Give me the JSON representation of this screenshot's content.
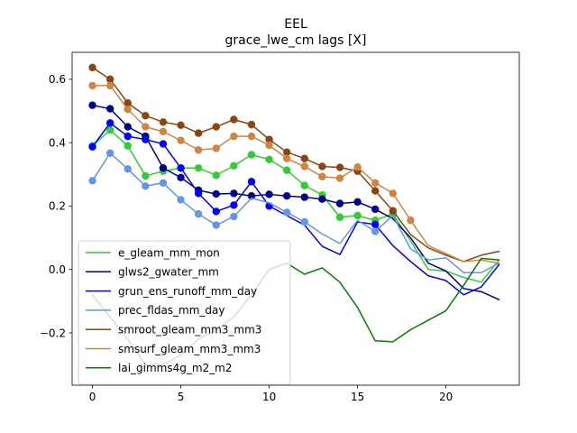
{
  "chart_data": {
    "type": "line",
    "title": "EEL",
    "subtitle": "grace_lwe_cm lags [X]",
    "xlabel": "",
    "ylabel": "",
    "xlim": [
      -1.15,
      24.15
    ],
    "ylim": [
      -0.365,
      0.685
    ],
    "xticks": [
      0,
      5,
      10,
      15,
      20
    ],
    "yticks": [
      -0.2,
      0.0,
      0.2,
      0.4,
      0.6
    ],
    "xtick_labels": [
      "0",
      "5",
      "10",
      "15",
      "20"
    ],
    "ytick_labels": [
      "−0.2",
      "0.0",
      "0.2",
      "0.4",
      "0.6"
    ],
    "legend_position": "lower-left",
    "x": [
      0,
      1,
      2,
      3,
      4,
      5,
      6,
      7,
      8,
      9,
      10,
      11,
      12,
      13,
      14,
      15,
      16,
      17,
      18,
      19,
      20,
      21,
      22,
      23
    ],
    "series": [
      {
        "name": "e_gleam_mm_mon",
        "color": "#32cd32",
        "values": [
          0.39,
          0.44,
          0.39,
          0.295,
          0.31,
          0.32,
          0.32,
          0.297,
          0.327,
          0.362,
          0.347,
          0.313,
          0.265,
          0.235,
          0.165,
          0.17,
          0.155,
          0.175,
          0.09,
          0.0,
          -0.005,
          -0.025,
          -0.04,
          0.03
        ],
        "markers": [
          true,
          true,
          true,
          true,
          true,
          true,
          true,
          true,
          true,
          true,
          true,
          true,
          true,
          true,
          true,
          true,
          true,
          true,
          false,
          false,
          false,
          false,
          false,
          false
        ]
      },
      {
        "name": "glws2_gwater_mm",
        "color": "#00008b",
        "values": [
          0.518,
          0.507,
          0.45,
          0.42,
          0.32,
          0.29,
          0.25,
          0.238,
          0.24,
          0.232,
          0.237,
          0.232,
          0.228,
          0.222,
          0.208,
          0.213,
          0.19,
          0.16,
          0.1,
          0.02,
          -0.005,
          -0.06,
          -0.07,
          -0.095
        ],
        "markers": [
          true,
          true,
          true,
          true,
          true,
          true,
          true,
          true,
          true,
          true,
          true,
          true,
          true,
          true,
          true,
          true,
          true,
          false,
          false,
          false,
          false,
          false,
          false,
          false
        ]
      },
      {
        "name": "grun_ens_runoff_mm_day",
        "color": "#0000ff",
        "values": [
          0.387,
          0.462,
          0.42,
          0.41,
          0.396,
          0.32,
          0.24,
          0.183,
          0.203,
          0.277,
          0.2,
          0.17,
          0.14,
          0.073,
          0.047,
          0.15,
          0.142,
          0.075,
          0.025,
          -0.02,
          -0.035,
          -0.08,
          -0.055,
          0.015
        ],
        "markers": [
          true,
          true,
          true,
          true,
          true,
          true,
          true,
          true,
          true,
          true,
          true,
          false,
          false,
          false,
          false,
          false,
          true,
          false,
          false,
          false,
          false,
          false,
          false,
          false
        ]
      },
      {
        "name": "prec_fldas_mm_day",
        "color": "#6495ed",
        "values": [
          0.28,
          0.367,
          0.317,
          0.263,
          0.273,
          0.22,
          0.175,
          0.14,
          0.167,
          0.225,
          0.21,
          0.18,
          0.15,
          0.112,
          0.082,
          0.155,
          0.12,
          0.17,
          0.065,
          0.03,
          0.037,
          -0.01,
          -0.01,
          0.02
        ],
        "markers": [
          true,
          true,
          true,
          true,
          true,
          true,
          true,
          true,
          true,
          false,
          false,
          true,
          true,
          false,
          false,
          false,
          true,
          false,
          false,
          false,
          false,
          false,
          false,
          false
        ]
      },
      {
        "name": "smroot_gleam_mm3_mm3",
        "color": "#8b4513",
        "values": [
          0.637,
          0.6,
          0.525,
          0.485,
          0.465,
          0.455,
          0.43,
          0.45,
          0.473,
          0.457,
          0.41,
          0.37,
          0.35,
          0.325,
          0.322,
          0.31,
          0.248,
          0.185,
          0.11,
          0.068,
          0.045,
          0.025,
          0.045,
          0.057
        ],
        "markers": [
          true,
          true,
          true,
          true,
          true,
          true,
          true,
          true,
          true,
          true,
          true,
          true,
          true,
          true,
          true,
          true,
          true,
          true,
          false,
          false,
          false,
          false,
          false,
          false
        ]
      },
      {
        "name": "smsurf_gleam_mm3_mm3",
        "color": "#cd853f",
        "values": [
          0.58,
          0.58,
          0.505,
          0.45,
          0.435,
          0.407,
          0.377,
          0.382,
          0.42,
          0.42,
          0.392,
          0.35,
          0.325,
          0.293,
          0.288,
          0.323,
          0.273,
          0.24,
          0.155,
          0.075,
          0.05,
          0.025,
          0.03,
          0.02
        ],
        "markers": [
          true,
          true,
          true,
          true,
          true,
          true,
          true,
          true,
          true,
          true,
          true,
          true,
          true,
          true,
          true,
          true,
          true,
          true,
          true,
          false,
          false,
          false,
          false,
          false
        ]
      },
      {
        "name": "lai_gimms4g_m2_m2",
        "color": "#008000",
        "values": [
          -0.08,
          -0.15,
          -0.22,
          -0.3,
          -0.3,
          -0.27,
          -0.22,
          -0.19,
          -0.15,
          -0.08,
          0.0,
          0.02,
          -0.015,
          0.005,
          -0.04,
          -0.12,
          -0.225,
          -0.228,
          -0.19,
          -0.16,
          -0.13,
          -0.05,
          0.035,
          0.03
        ],
        "markers": [
          false,
          false,
          false,
          false,
          false,
          false,
          false,
          false,
          false,
          false,
          false,
          false,
          false,
          false,
          false,
          false,
          false,
          false,
          false,
          false,
          false,
          false,
          false,
          false
        ]
      }
    ]
  }
}
